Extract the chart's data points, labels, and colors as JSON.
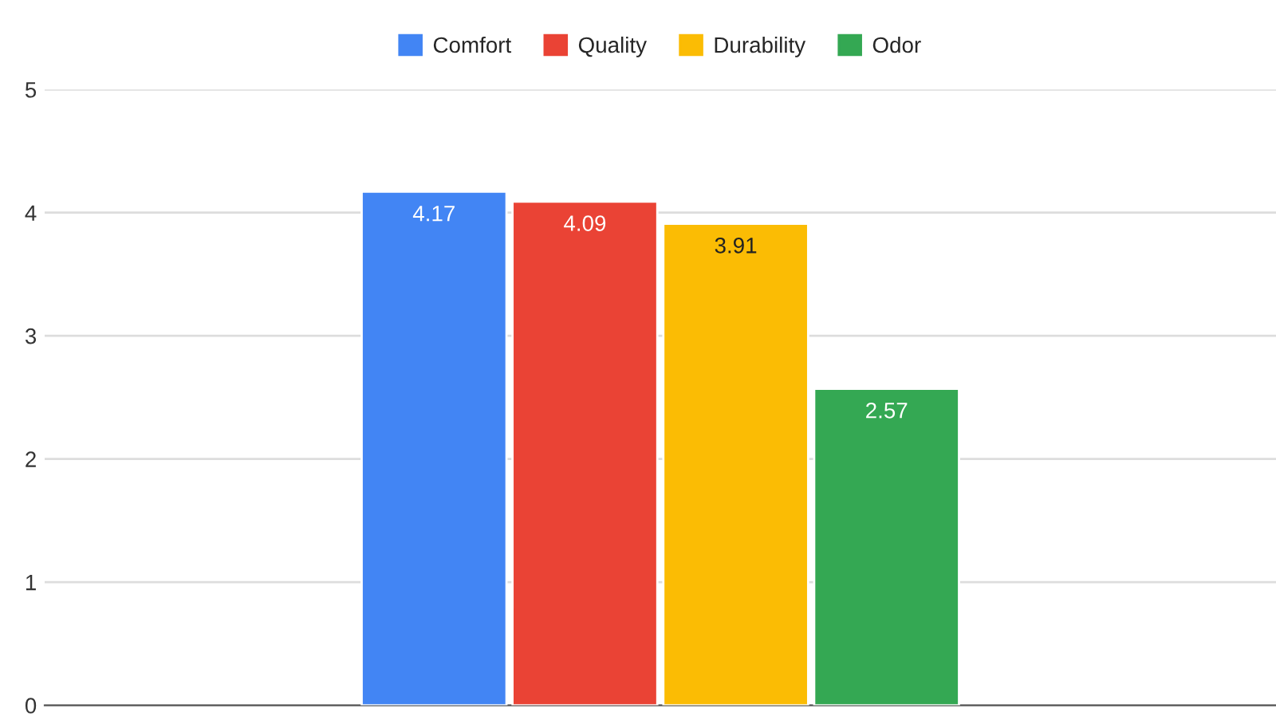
{
  "chart_data": {
    "type": "bar",
    "categories": [
      null
    ],
    "series": [
      {
        "name": "Comfort",
        "color": "#4285f4",
        "values": [
          4.17
        ]
      },
      {
        "name": "Quality",
        "color": "#ea4335",
        "values": [
          4.09
        ]
      },
      {
        "name": "Durability",
        "color": "#fbbc04",
        "values": [
          3.91
        ]
      },
      {
        "name": "Odor",
        "color": "#34a853",
        "values": [
          2.57
        ]
      }
    ],
    "ylim": [
      0,
      5
    ],
    "yticks": [
      0,
      1,
      2,
      3,
      4,
      5
    ],
    "grid": "y",
    "legend": "top",
    "data_labels": true
  }
}
